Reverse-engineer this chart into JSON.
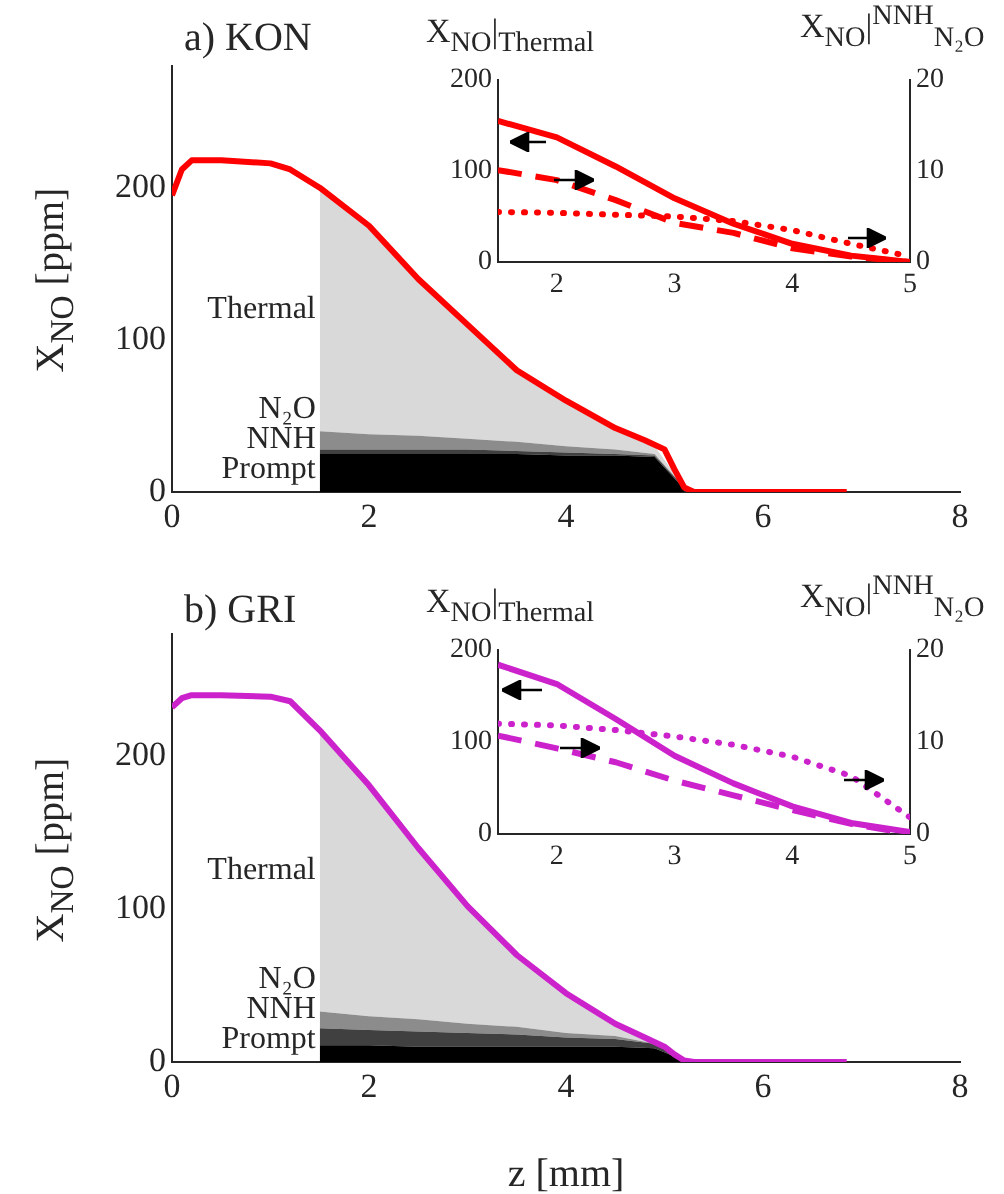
{
  "chart_data": [
    {
      "type": "area",
      "title": "a) KON",
      "ylabel": "X$_{NO}$ [ppm]",
      "stacked": true,
      "xlim": [
        0,
        8
      ],
      "xticks": [
        0,
        2,
        4,
        6,
        8
      ],
      "ylim": [
        0,
        280
      ],
      "yticks": [
        0,
        100,
        200
      ],
      "series": [
        {
          "name": "Prompt",
          "type": "area",
          "color": "#000000",
          "x": [
            1.5,
            2,
            2.5,
            3,
            3.5,
            4,
            4.5,
            4.9,
            5.2
          ],
          "values": [
            25,
            25,
            25,
            25,
            25,
            24,
            24,
            23,
            2
          ]
        },
        {
          "name": "NNH",
          "type": "area",
          "color": "#404040",
          "x": [
            1.5,
            2,
            2.5,
            3,
            3.5,
            4,
            4.5,
            4.9,
            5.2
          ],
          "values": [
            3,
            3,
            3,
            3,
            2,
            2,
            1,
            1,
            1
          ]
        },
        {
          "name": "N₂O",
          "type": "area",
          "color": "#8c8c8c",
          "x": [
            1.5,
            2,
            2.5,
            3,
            3.5,
            4,
            4.5,
            4.9,
            5.2
          ],
          "values": [
            12,
            10,
            9,
            7,
            6,
            4,
            3,
            1,
            0
          ]
        },
        {
          "name": "Thermal",
          "type": "area",
          "color": "#d9d9d9",
          "x": [
            1.5,
            2,
            2.5,
            3,
            3.5,
            4,
            4.5,
            4.9,
            5.2
          ],
          "values": [
            160,
            137,
            103,
            75,
            47,
            30,
            14,
            5,
            0
          ]
        },
        {
          "type": "line",
          "color": "#ff0000",
          "x": [
            0,
            0.1,
            0.2,
            0.5,
            1.0,
            1.2,
            1.5,
            2,
            2.5,
            3,
            3.5,
            4,
            4.5,
            4.8,
            5.0,
            5.1,
            5.2,
            5.3,
            6,
            6.85
          ],
          "values": [
            195,
            212,
            218,
            218,
            216,
            212,
            200,
            175,
            140,
            110,
            80,
            60,
            42,
            34,
            28,
            15,
            3,
            0,
            0,
            0
          ]
        }
      ]
    },
    {
      "type": "line",
      "ylabel": "X$_{NO}$|$_{Thermal}$",
      "y2label": "X$_{NO}$|$^{NNH}$$_{N₂O}$",
      "x": [
        1.5,
        2,
        2.5,
        3,
        3.5,
        4,
        4.5,
        5
      ],
      "xlim": [
        1.5,
        5
      ],
      "xticks": [
        2,
        3,
        4,
        5
      ],
      "ylim": [
        0,
        200
      ],
      "yticks": [
        0,
        100,
        200
      ],
      "y2lim": [
        0,
        20
      ],
      "y2ticks": [
        0,
        10,
        20
      ],
      "series": [
        {
          "color": "#ff0000",
          "line_style": "solid",
          "values": [
            155,
            137,
            105,
            70,
            42,
            20,
            7,
            0
          ]
        },
        {
          "color": "#ff0000",
          "line_style": "dashed",
          "axis": "y2",
          "values": [
            10.1,
            9,
            6.8,
            4.3,
            3.2,
            1.5,
            0.6,
            0
          ]
        },
        {
          "color": "#ff0000",
          "line_style": "dotted",
          "axis": "y2",
          "values": [
            5.5,
            5.4,
            5.2,
            5,
            4.5,
            3.5,
            2,
            0.6
          ]
        }
      ]
    },
    {
      "type": "area",
      "title": "b) GRI",
      "xlabel": "z [mm]",
      "ylabel": "X$_{NO}$ [ppm]",
      "stacked": true,
      "xlim": [
        0,
        8
      ],
      "xticks": [
        0,
        2,
        4,
        6,
        8
      ],
      "ylim": [
        0,
        280
      ],
      "yticks": [
        0,
        100,
        200
      ],
      "series": [
        {
          "name": "Prompt",
          "type": "area",
          "color": "#000000",
          "x": [
            1.5,
            2,
            2.5,
            3,
            3.5,
            4,
            4.5,
            4.9,
            5.2
          ],
          "values": [
            11,
            11,
            10,
            10,
            10,
            10,
            10,
            9,
            1
          ]
        },
        {
          "name": "NNH",
          "type": "area",
          "color": "#404040",
          "x": [
            1.5,
            2,
            2.5,
            3,
            3.5,
            4,
            4.5,
            4.9,
            5.2
          ],
          "values": [
            11,
            10,
            10,
            9,
            8,
            6,
            5,
            3,
            0
          ]
        },
        {
          "name": "N₂O",
          "type": "area",
          "color": "#8c8c8c",
          "x": [
            1.5,
            2,
            2.5,
            3,
            3.5,
            4,
            4.5,
            4.9,
            5.2
          ],
          "values": [
            11,
            9,
            8,
            6,
            5,
            3,
            2,
            0,
            0
          ]
        },
        {
          "name": "Thermal",
          "type": "area",
          "color": "#d9d9d9",
          "x": [
            1.5,
            2,
            2.5,
            3,
            3.5,
            4,
            4.5,
            4.9,
            5.2
          ],
          "values": [
            184,
            151,
            112,
            77,
            47,
            26,
            8,
            0,
            0
          ]
        },
        {
          "type": "line",
          "color": "#cc22cc",
          "x": [
            0,
            0.1,
            0.2,
            0.5,
            1.0,
            1.2,
            1.5,
            2,
            2.5,
            3,
            3.5,
            4,
            4.5,
            4.8,
            5.0,
            5.1,
            5.2,
            5.3,
            6,
            6.85
          ],
          "values": [
            232,
            238,
            240,
            240,
            239,
            236,
            217,
            181,
            140,
            102,
            70,
            45,
            25,
            16,
            10,
            5,
            1,
            0,
            0,
            0
          ]
        }
      ]
    },
    {
      "type": "line",
      "ylabel": "X$_{NO}$|$_{Thermal}$",
      "y2label": "X$_{NO}$|$^{NNH}$$_{N₂O}$",
      "x": [
        1.5,
        2,
        2.5,
        3,
        3.5,
        4,
        4.5,
        5
      ],
      "xlim": [
        1.5,
        5
      ],
      "xticks": [
        2,
        3,
        4,
        5
      ],
      "ylim": [
        0,
        200
      ],
      "yticks": [
        0,
        100,
        200
      ],
      "y2lim": [
        0,
        20
      ],
      "y2ticks": [
        0,
        10,
        20
      ],
      "series": [
        {
          "color": "#cc22cc",
          "line_style": "solid",
          "values": [
            184,
            163,
            125,
            85,
            55,
            30,
            12,
            2
          ]
        },
        {
          "color": "#cc22cc",
          "line_style": "dashed",
          "axis": "y2",
          "values": [
            10.7,
            9.3,
            7.8,
            5.8,
            4.2,
            2.6,
            1.1,
            0
          ]
        },
        {
          "color": "#cc22cc",
          "line_style": "dotted",
          "axis": "y2",
          "values": [
            12,
            11.8,
            11.3,
            10.6,
            9.7,
            8.4,
            6.3,
            1.8
          ]
        }
      ]
    }
  ]
}
